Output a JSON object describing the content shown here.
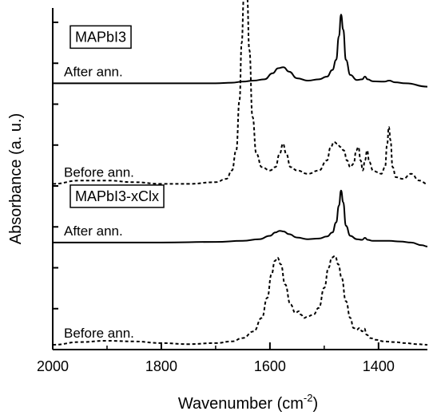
{
  "chart_data": {
    "type": "line",
    "xlabel": "Wavenumber (cm",
    "xlabel_sup": "-2",
    "xlabel_end": ")",
    "ylabel": "Absorbance (a. u.)",
    "xlim": [
      2000,
      1310
    ],
    "x_reversed": true,
    "x_ticks": [
      2000,
      1800,
      1600,
      1400
    ],
    "y_ticks_count": 8,
    "y_tick_labels_shown": false,
    "groups": [
      {
        "label": "MAPbI3",
        "series": [
          {
            "label": "After ann.",
            "style": "solid",
            "offset": 0.78,
            "points": [
              [
                2000,
                0.0
              ],
              [
                1900,
                0.0
              ],
              [
                1800,
                0.0
              ],
              [
                1700,
                0.0
              ],
              [
                1670,
                0.002
              ],
              [
                1650,
                0.005
              ],
              [
                1630,
                0.008
              ],
              [
                1610,
                0.012
              ],
              [
                1595,
                0.03
              ],
              [
                1585,
                0.045
              ],
              [
                1575,
                0.048
              ],
              [
                1565,
                0.035
              ],
              [
                1550,
                0.015
              ],
              [
                1530,
                0.008
              ],
              [
                1510,
                0.012
              ],
              [
                1495,
                0.02
              ],
              [
                1485,
                0.04
              ],
              [
                1478,
                0.07
              ],
              [
                1473,
                0.14
              ],
              [
                1469,
                0.205
              ],
              [
                1465,
                0.16
              ],
              [
                1460,
                0.07
              ],
              [
                1452,
                0.025
              ],
              [
                1440,
                0.01
              ],
              [
                1430,
                0.012
              ],
              [
                1425,
                0.02
              ],
              [
                1420,
                0.012
              ],
              [
                1410,
                0.006
              ],
              [
                1390,
                0.005
              ],
              [
                1380,
                0.008
              ],
              [
                1370,
                0.003
              ],
              [
                1350,
                0.0
              ],
              [
                1310,
                -0.01
              ]
            ]
          },
          {
            "label": "Before ann.",
            "style": "dashed",
            "offset": 0.48,
            "points": [
              [
                2000,
                0.0
              ],
              [
                1950,
                0.01
              ],
              [
                1900,
                0.01
              ],
              [
                1850,
                0.005
              ],
              [
                1800,
                0.0
              ],
              [
                1750,
                0.0
              ],
              [
                1700,
                0.005
              ],
              [
                1680,
                0.015
              ],
              [
                1670,
                0.04
              ],
              [
                1662,
                0.1
              ],
              [
                1656,
                0.25
              ],
              [
                1652,
                0.42
              ],
              [
                1648,
                0.56
              ],
              [
                1645,
                0.6
              ],
              [
                1642,
                0.56
              ],
              [
                1638,
                0.4
              ],
              [
                1632,
                0.2
              ],
              [
                1625,
                0.09
              ],
              [
                1615,
                0.05
              ],
              [
                1600,
                0.04
              ],
              [
                1590,
                0.05
              ],
              [
                1582,
                0.09
              ],
              [
                1576,
                0.12
              ],
              [
                1570,
                0.09
              ],
              [
                1562,
                0.05
              ],
              [
                1550,
                0.04
              ],
              [
                1530,
                0.03
              ],
              [
                1510,
                0.04
              ],
              [
                1495,
                0.07
              ],
              [
                1488,
                0.11
              ],
              [
                1482,
                0.125
              ],
              [
                1476,
                0.12
              ],
              [
                1470,
                0.11
              ],
              [
                1464,
                0.1
              ],
              [
                1458,
                0.07
              ],
              [
                1452,
                0.05
              ],
              [
                1446,
                0.06
              ],
              [
                1441,
                0.1
              ],
              [
                1437,
                0.11
              ],
              [
                1433,
                0.07
              ],
              [
                1429,
                0.04
              ],
              [
                1425,
                0.07
              ],
              [
                1421,
                0.1
              ],
              [
                1417,
                0.065
              ],
              [
                1410,
                0.04
              ],
              [
                1402,
                0.035
              ],
              [
                1395,
                0.03
              ],
              [
                1388,
                0.05
              ],
              [
                1384,
                0.12
              ],
              [
                1381,
                0.17
              ],
              [
                1378,
                0.13
              ],
              [
                1374,
                0.05
              ],
              [
                1368,
                0.02
              ],
              [
                1355,
                0.015
              ],
              [
                1340,
                0.03
              ],
              [
                1325,
                0.01
              ],
              [
                1310,
                0.0
              ]
            ]
          }
        ]
      },
      {
        "label": "MAPbI3-xClx",
        "series": [
          {
            "label": "After ann.",
            "style": "solid",
            "offset": 0.305,
            "points": [
              [
                2000,
                0.0
              ],
              [
                1900,
                0.0
              ],
              [
                1800,
                0.0
              ],
              [
                1700,
                0.002
              ],
              [
                1650,
                0.005
              ],
              [
                1620,
                0.01
              ],
              [
                1600,
                0.02
              ],
              [
                1590,
                0.03
              ],
              [
                1582,
                0.035
              ],
              [
                1575,
                0.033
              ],
              [
                1565,
                0.025
              ],
              [
                1550,
                0.015
              ],
              [
                1530,
                0.01
              ],
              [
                1510,
                0.012
              ],
              [
                1495,
                0.018
              ],
              [
                1485,
                0.03
              ],
              [
                1478,
                0.06
              ],
              [
                1473,
                0.11
              ],
              [
                1469,
                0.155
              ],
              [
                1465,
                0.12
              ],
              [
                1460,
                0.05
              ],
              [
                1452,
                0.02
              ],
              [
                1440,
                0.01
              ],
              [
                1430,
                0.008
              ],
              [
                1425,
                0.014
              ],
              [
                1420,
                0.008
              ],
              [
                1410,
                0.005
              ],
              [
                1380,
                0.005
              ],
              [
                1360,
                0.003
              ],
              [
                1340,
                0.0
              ],
              [
                1320,
                -0.008
              ],
              [
                1310,
                -0.012
              ]
            ]
          },
          {
            "label": "Before ann.",
            "style": "dashed",
            "offset": 0.0,
            "points": [
              [
                2000,
                0.0
              ],
              [
                1950,
                0.008
              ],
              [
                1900,
                0.012
              ],
              [
                1850,
                0.01
              ],
              [
                1800,
                0.005
              ],
              [
                1750,
                0.002
              ],
              [
                1700,
                0.005
              ],
              [
                1670,
                0.01
              ],
              [
                1650,
                0.02
              ],
              [
                1630,
                0.04
              ],
              [
                1615,
                0.08
              ],
              [
                1605,
                0.14
              ],
              [
                1597,
                0.21
              ],
              [
                1591,
                0.25
              ],
              [
                1586,
                0.26
              ],
              [
                1580,
                0.24
              ],
              [
                1572,
                0.18
              ],
              [
                1562,
                0.12
              ],
              [
                1553,
                0.095
              ],
              [
                1547,
                0.1
              ],
              [
                1543,
                0.09
              ],
              [
                1537,
                0.08
              ],
              [
                1530,
                0.085
              ],
              [
                1520,
                0.09
              ],
              [
                1510,
                0.11
              ],
              [
                1500,
                0.17
              ],
              [
                1492,
                0.23
              ],
              [
                1486,
                0.26
              ],
              [
                1480,
                0.265
              ],
              [
                1474,
                0.24
              ],
              [
                1468,
                0.2
              ],
              [
                1460,
                0.13
              ],
              [
                1452,
                0.08
              ],
              [
                1446,
                0.05
              ],
              [
                1440,
                0.045
              ],
              [
                1435,
                0.05
              ],
              [
                1430,
                0.04
              ],
              [
                1426,
                0.048
              ],
              [
                1422,
                0.03
              ],
              [
                1415,
                0.02
              ],
              [
                1405,
                0.015
              ],
              [
                1390,
                0.01
              ],
              [
                1370,
                0.008
              ],
              [
                1350,
                0.005
              ],
              [
                1330,
                0.002
              ],
              [
                1310,
                0.0
              ]
            ]
          }
        ]
      }
    ]
  }
}
